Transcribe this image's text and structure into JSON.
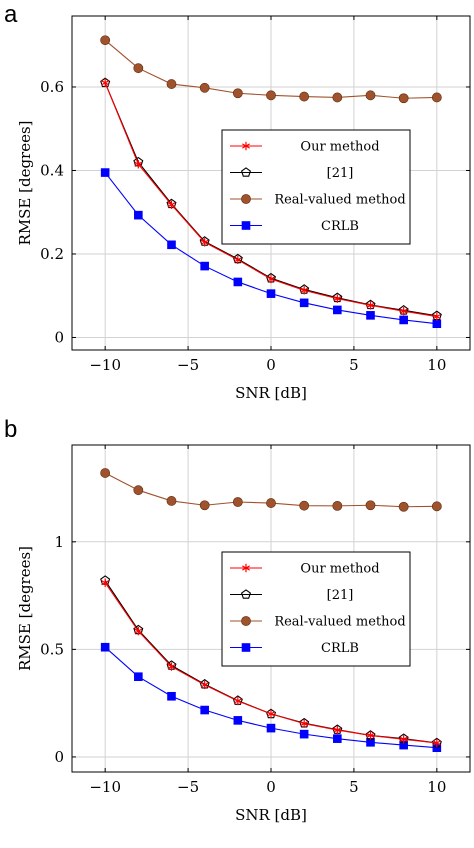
{
  "chart_data": [
    {
      "panel": "a",
      "type": "line",
      "x": [
        -10,
        -8,
        -6,
        -4,
        -2,
        0,
        2,
        4,
        6,
        8,
        10
      ],
      "xlabel": "SNR [dB]",
      "ylabel": "RMSE [degrees]",
      "xlim": [
        -12,
        12
      ],
      "ylim": [
        -0.03,
        0.77
      ],
      "xticks": [
        -10,
        -5,
        0,
        5,
        10
      ],
      "xtick_labels": [
        "−10",
        "−5",
        "0",
        "5",
        "10"
      ],
      "yticks": [
        0,
        0.2,
        0.4,
        0.6
      ],
      "ytick_labels": [
        "0",
        "0.2",
        "0.4",
        "0.6"
      ],
      "grid": true,
      "legend_position": "center-right",
      "series": [
        {
          "name": "Our method",
          "color": "#ff0000",
          "marker": "asterisk",
          "values": [
            0.61,
            0.415,
            0.318,
            0.228,
            0.186,
            0.14,
            0.113,
            0.093,
            0.077,
            0.063,
            0.05
          ]
        },
        {
          "name": "[21]",
          "color": "#000000",
          "marker": "pentagon",
          "values": [
            0.61,
            0.42,
            0.32,
            0.23,
            0.188,
            0.142,
            0.115,
            0.095,
            0.078,
            0.065,
            0.052
          ]
        },
        {
          "name": "Real-valued method",
          "color": "#a0522d",
          "marker": "circle",
          "values": [
            0.712,
            0.645,
            0.607,
            0.598,
            0.585,
            0.58,
            0.577,
            0.575,
            0.58,
            0.573,
            0.575
          ]
        },
        {
          "name": "CRLB",
          "color": "#0000ff",
          "marker": "square",
          "values": [
            0.395,
            0.293,
            0.222,
            0.171,
            0.133,
            0.105,
            0.083,
            0.066,
            0.053,
            0.042,
            0.033
          ]
        }
      ]
    },
    {
      "panel": "b",
      "type": "line",
      "x": [
        -10,
        -8,
        -6,
        -4,
        -2,
        0,
        2,
        4,
        6,
        8,
        10
      ],
      "xlabel": "SNR [dB]",
      "ylabel": "RMSE [degrees]",
      "xlim": [
        -12,
        12
      ],
      "ylim": [
        -0.07,
        1.45
      ],
      "xticks": [
        -10,
        -5,
        0,
        5,
        10
      ],
      "xtick_labels": [
        "−10",
        "−5",
        "0",
        "5",
        "10"
      ],
      "yticks": [
        0,
        0.5,
        1
      ],
      "ytick_labels": [
        "0",
        "0.5",
        "1"
      ],
      "grid": true,
      "legend_position": "center-right",
      "series": [
        {
          "name": "Our method",
          "color": "#ff0000",
          "marker": "asterisk",
          "values": [
            0.81,
            0.585,
            0.42,
            0.335,
            0.26,
            0.2,
            0.155,
            0.125,
            0.1,
            0.082,
            0.065
          ]
        },
        {
          "name": "[21]",
          "color": "#000000",
          "marker": "pentagon",
          "values": [
            0.82,
            0.59,
            0.425,
            0.338,
            0.262,
            0.2,
            0.157,
            0.127,
            0.1,
            0.085,
            0.065
          ]
        },
        {
          "name": "Real-valued method",
          "color": "#a0522d",
          "marker": "circle",
          "values": [
            1.32,
            1.24,
            1.19,
            1.17,
            1.185,
            1.18,
            1.168,
            1.167,
            1.17,
            1.163,
            1.165
          ]
        },
        {
          "name": "CRLB",
          "color": "#0000ff",
          "marker": "square",
          "values": [
            0.51,
            0.373,
            0.282,
            0.218,
            0.17,
            0.134,
            0.106,
            0.085,
            0.068,
            0.055,
            0.043
          ]
        }
      ]
    }
  ]
}
